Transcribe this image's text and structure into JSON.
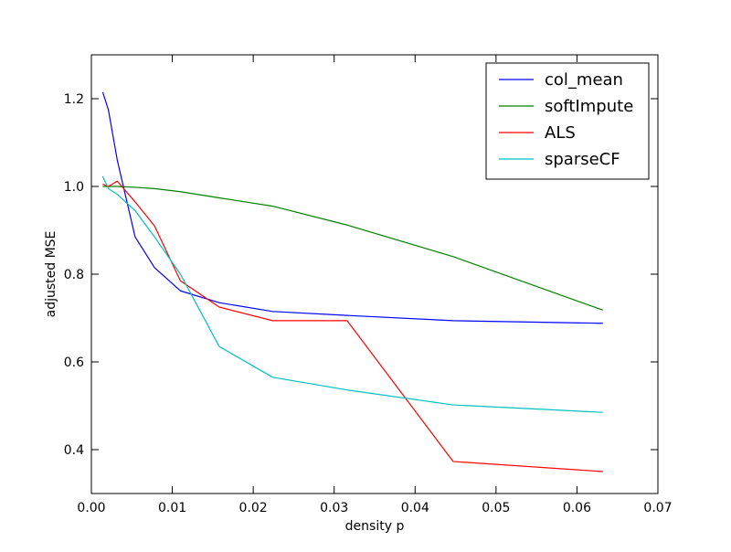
{
  "chart_data": {
    "type": "line",
    "title": "",
    "xlabel": "density p",
    "ylabel": "adjusted MSE",
    "xlim": [
      0.0,
      0.07
    ],
    "ylim": [
      0.3,
      1.3
    ],
    "xticks": [
      0.0,
      0.01,
      0.02,
      0.03,
      0.04,
      0.05,
      0.06,
      0.07
    ],
    "xtick_labels": [
      "0.00",
      "0.01",
      "0.02",
      "0.03",
      "0.04",
      "0.05",
      "0.06",
      "0.07"
    ],
    "yticks": [
      0.4,
      0.6,
      0.8,
      1.0,
      1.2
    ],
    "ytick_labels": [
      "0.4",
      "0.6",
      "0.8",
      "1.0",
      "1.2"
    ],
    "grid": false,
    "legend_position": "top-right",
    "series": [
      {
        "name": "col_mean",
        "color": "#0000ff",
        "x": [
          0.0014,
          0.0021,
          0.0032,
          0.0054,
          0.0078,
          0.011,
          0.0158,
          0.0224,
          0.0316,
          0.0447,
          0.0632
        ],
        "y": [
          1.215,
          1.175,
          1.06,
          0.885,
          0.815,
          0.762,
          0.735,
          0.715,
          0.706,
          0.694,
          0.688
        ]
      },
      {
        "name": "softImpute",
        "color": "#008000",
        "x": [
          0.0014,
          0.0021,
          0.0032,
          0.0054,
          0.0078,
          0.011,
          0.0158,
          0.0224,
          0.0316,
          0.0447,
          0.0632
        ],
        "y": [
          1.0,
          1.0,
          1.0,
          0.998,
          0.995,
          0.988,
          0.974,
          0.955,
          0.912,
          0.84,
          0.718
        ]
      },
      {
        "name": "ALS",
        "color": "#ff0000",
        "x": [
          0.0014,
          0.0021,
          0.0032,
          0.0054,
          0.0078,
          0.011,
          0.0158,
          0.0224,
          0.0316,
          0.0447,
          0.0632
        ],
        "y": [
          1.005,
          1.0,
          1.012,
          0.965,
          0.91,
          0.785,
          0.725,
          0.694,
          0.694,
          0.373,
          0.35
        ]
      },
      {
        "name": "sparseCF",
        "color": "#00bfbf",
        "x": [
          0.0014,
          0.0021,
          0.0032,
          0.0054,
          0.0078,
          0.011,
          0.0158,
          0.0224,
          0.0316,
          0.0447,
          0.0632
        ],
        "y": [
          1.023,
          0.995,
          0.982,
          0.945,
          0.885,
          0.8,
          0.635,
          0.565,
          0.536,
          0.502,
          0.485
        ]
      }
    ]
  }
}
